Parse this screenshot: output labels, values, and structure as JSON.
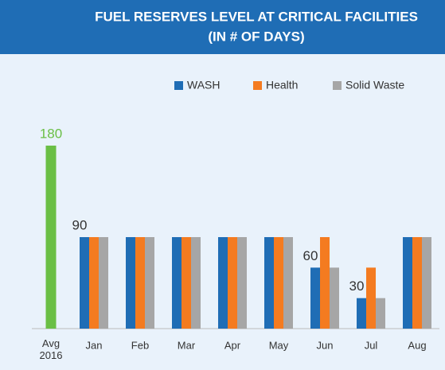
{
  "chart_data": {
    "type": "bar",
    "title": [
      "FUEL RESERVES LEVEL AT CRITICAL FACILITIES",
      "(IN # OF DAYS)"
    ],
    "average": {
      "label": "Avg 2016",
      "value": 180,
      "value_label": "180",
      "color": "#6abf45"
    },
    "categories": [
      "Jan",
      "Feb",
      "Mar",
      "Apr",
      "May",
      "Jun",
      "Jul",
      "Aug"
    ],
    "series": [
      {
        "name": "WASH",
        "color": "#1f6db5",
        "values": [
          90,
          90,
          90,
          90,
          90,
          60,
          30,
          90
        ],
        "value_labels": [
          "90",
          null,
          null,
          null,
          null,
          "60",
          "30",
          null
        ]
      },
      {
        "name": "Health",
        "color": "#f47b20",
        "values": [
          90,
          90,
          90,
          90,
          90,
          90,
          60,
          90
        ]
      },
      {
        "name": "Solid Waste",
        "color": "#a6a6a6",
        "values": [
          90,
          90,
          90,
          90,
          90,
          60,
          30,
          90
        ]
      }
    ],
    "ylim": [
      0,
      180
    ]
  }
}
